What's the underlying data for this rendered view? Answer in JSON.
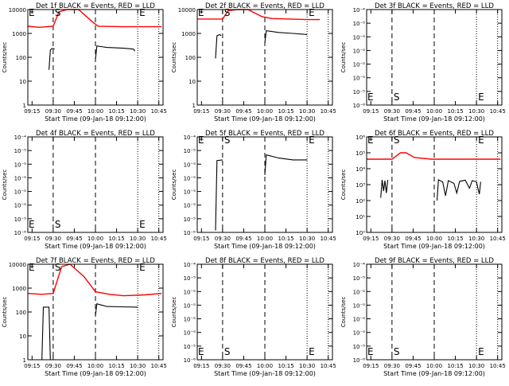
{
  "figure": {
    "xticks": [
      "09:15",
      "09:30",
      "09:45",
      "10:00",
      "10:15",
      "10:30",
      "10:45"
    ],
    "xlabel": "Start Time (09-Jan-18 09:12:00)",
    "ylabel": "Counts/sec",
    "event_color": "#000000",
    "lld_color": "#ff0000"
  },
  "chart_data": [
    {
      "type": "line",
      "title": "Det 1f BLACK = Events, RED = LLD",
      "ylog": true,
      "ylim": [
        1,
        10000
      ],
      "yticks": [
        "1",
        "10",
        "100",
        "1000",
        "10000"
      ],
      "xlim": [
        "09:12",
        "10:48"
      ],
      "markers": [
        {
          "label": "E",
          "time": "09:12"
        },
        {
          "label": "S",
          "time": "09:30"
        },
        {
          "label": "E",
          "time": "10:30"
        }
      ],
      "vlines": [
        {
          "time": "09:30",
          "style": "dashed"
        },
        {
          "time": "10:00",
          "style": "dashed"
        },
        {
          "time": "10:30",
          "style": "dotted"
        },
        {
          "time": "10:45",
          "style": "dotted"
        }
      ],
      "series": [
        {
          "name": "Events",
          "segments": [
            [
              [
                "09:27",
                30
              ],
              [
                "09:28",
                200
              ],
              [
                "09:29",
                230
              ],
              [
                "09:30",
                230
              ],
              [
                "09:31",
                220
              ]
            ],
            [
              [
                "10:00",
                80
              ],
              [
                "10:01",
                300
              ],
              [
                "10:08",
                260
              ],
              [
                "10:20",
                240
              ],
              [
                "10:27",
                220
              ],
              [
                "10:28",
                180
              ]
            ]
          ]
        },
        {
          "name": "LLD",
          "segments": [
            [
              [
                "09:12",
                2000
              ],
              [
                "09:20",
                1800
              ],
              [
                "09:30",
                2000
              ],
              [
                "09:34",
                8000
              ],
              [
                "09:40",
                12000
              ],
              [
                "09:48",
                10000
              ],
              [
                "09:58",
                3000
              ],
              [
                "10:02",
                2000
              ],
              [
                "10:20",
                1900
              ],
              [
                "10:47",
                1900
              ]
            ]
          ]
        }
      ]
    },
    {
      "type": "line",
      "title": "Det 2f BLACK = Events, RED = LLD",
      "ylog": true,
      "ylim": [
        1,
        10000
      ],
      "yticks": [
        "1",
        "10",
        "100",
        "1000",
        "10000"
      ],
      "xlim": [
        "09:12",
        "10:48"
      ],
      "markers": [
        {
          "label": "E",
          "time": "09:12"
        },
        {
          "label": "S",
          "time": "09:30"
        },
        {
          "label": "E",
          "time": "10:30"
        }
      ],
      "vlines": [
        {
          "time": "09:30",
          "style": "dashed"
        },
        {
          "time": "10:00",
          "style": "dashed"
        },
        {
          "time": "10:30",
          "style": "dotted"
        },
        {
          "time": "10:45",
          "style": "dotted"
        }
      ],
      "series": [
        {
          "name": "Events",
          "segments": [
            [
              [
                "09:25",
                90
              ],
              [
                "09:26",
                800
              ],
              [
                "09:28",
                900
              ],
              [
                "09:29",
                800
              ]
            ],
            [
              [
                "10:00",
                400
              ],
              [
                "10:01",
                1300
              ],
              [
                "10:10",
                1100
              ],
              [
                "10:20",
                1000
              ],
              [
                "10:30",
                900
              ]
            ]
          ]
        },
        {
          "name": "LLD",
          "segments": [
            [
              [
                "09:12",
                4000
              ],
              [
                "09:20",
                4000
              ],
              [
                "09:30",
                4000
              ],
              [
                "09:34",
                9000
              ],
              [
                "09:40",
                12000
              ],
              [
                "09:48",
                10000
              ],
              [
                "09:58",
                5000
              ],
              [
                "10:05",
                4200
              ],
              [
                "10:30",
                3800
              ],
              [
                "10:39",
                3800
              ]
            ]
          ]
        }
      ]
    },
    {
      "type": "line",
      "title": "Det 3f BLACK = Events, RED = LLD",
      "ylog": true,
      "ylim": [
        1e-06,
        0.0001
      ],
      "yticks": [
        "10⁻⁶",
        "10⁻⁵",
        "10⁻⁵",
        "10⁻⁵",
        "10⁻⁵",
        "10⁻⁵",
        "10⁻⁵",
        "10⁻⁴"
      ],
      "xlim": [
        "09:12",
        "10:48"
      ],
      "markers": [
        {
          "label": "E",
          "time": "09:12"
        },
        {
          "label": "S",
          "time": "09:30"
        },
        {
          "label": "E",
          "time": "10:30"
        }
      ],
      "vlines": [
        {
          "time": "09:30",
          "style": "dashed"
        },
        {
          "time": "10:00",
          "style": "dashed"
        },
        {
          "time": "10:30",
          "style": "dotted"
        },
        {
          "time": "10:45",
          "style": "dotted"
        }
      ],
      "series": []
    },
    {
      "type": "line",
      "title": "Det 4f BLACK = Events, RED = LLD",
      "ylog": true,
      "ylim": [
        1e-06,
        0.0001
      ],
      "yticks": [
        "10⁻⁶",
        "10⁻⁵",
        "10⁻⁵",
        "10⁻⁵",
        "10⁻⁵",
        "10⁻⁵",
        "10⁻⁵",
        "10⁻⁴"
      ],
      "xlim": [
        "09:12",
        "10:48"
      ],
      "markers": [
        {
          "label": "E",
          "time": "09:12"
        },
        {
          "label": "S",
          "time": "09:30"
        },
        {
          "label": "E",
          "time": "10:30"
        }
      ],
      "vlines": [
        {
          "time": "09:30",
          "style": "dashed"
        },
        {
          "time": "10:00",
          "style": "dashed"
        },
        {
          "time": "10:30",
          "style": "dotted"
        },
        {
          "time": "10:45",
          "style": "dotted"
        }
      ],
      "series": []
    },
    {
      "type": "line",
      "title": "Det 5f BLACK = Events, RED = LLD",
      "ylog": true,
      "ylim": [
        1e-06,
        0.0001
      ],
      "yticks": [
        "10⁻⁶",
        "10⁻⁵",
        "10⁻⁵",
        "10⁻⁵",
        "10⁻⁵",
        "10⁻⁵",
        "10⁻⁵",
        "10⁻⁴"
      ],
      "xlim": [
        "09:12",
        "10:48"
      ],
      "markers": [
        {
          "label": "E",
          "time": "09:12"
        },
        {
          "label": "S",
          "time": "09:30"
        },
        {
          "label": "E",
          "time": "10:30"
        }
      ],
      "vlines": [
        {
          "time": "09:30",
          "style": "dashed"
        },
        {
          "time": "10:00",
          "style": "dashed"
        },
        {
          "time": "10:30",
          "style": "dotted"
        },
        {
          "time": "10:45",
          "style": "dotted"
        }
      ],
      "series": [
        {
          "name": "Events",
          "segments": [
            [
              [
                "09:25",
                1.1e-06
              ],
              [
                "09:26",
                3.2e-05
              ],
              [
                "09:30",
                3.3e-05
              ]
            ],
            [
              [
                "10:00",
                1.6e-05
              ],
              [
                "10:01",
                4.2e-05
              ],
              [
                "10:10",
                3.6e-05
              ],
              [
                "10:20",
                3.3e-05
              ],
              [
                "10:30",
                3.3e-05
              ]
            ]
          ]
        }
      ]
    },
    {
      "type": "line",
      "title": "Det 6f BLACK = Events, RED = LLD",
      "ylog": true,
      "ylim": [
        1,
        1000000.0
      ],
      "yticks": [
        "10⁰",
        "10¹",
        "10²",
        "10³",
        "10⁴",
        "10⁵",
        "10⁶"
      ],
      "xlim": [
        "09:12",
        "10:48"
      ],
      "markers": [
        {
          "label": "E",
          "time": "09:12"
        },
        {
          "label": "S",
          "time": "09:30"
        },
        {
          "label": "E",
          "time": "10:30"
        }
      ],
      "vlines": [
        {
          "time": "09:30",
          "style": "dashed"
        },
        {
          "time": "10:00",
          "style": "dashed"
        },
        {
          "time": "10:30",
          "style": "dotted"
        },
        {
          "time": "10:45",
          "style": "dotted"
        }
      ],
      "series": [
        {
          "name": "Events",
          "segments": [
            [
              [
                "09:22",
                150
              ],
              [
                "09:23",
                2000
              ],
              [
                "09:24",
                400
              ],
              [
                "09:25",
                1800
              ],
              [
                "09:26",
                300
              ],
              [
                "09:27",
                2000
              ]
            ],
            [
              [
                "10:02",
                100
              ],
              [
                "10:03",
                2000
              ],
              [
                "10:06",
                1500
              ],
              [
                "10:08",
                200
              ],
              [
                "10:10",
                1800
              ],
              [
                "10:14",
                1200
              ],
              [
                "10:16",
                300
              ],
              [
                "10:18",
                1600
              ],
              [
                "10:22",
                1900
              ],
              [
                "10:25",
                600
              ],
              [
                "10:27",
                1800
              ],
              [
                "10:30",
                1500
              ],
              [
                "10:32",
                250
              ],
              [
                "10:33",
                1500
              ]
            ]
          ]
        },
        {
          "name": "LLD",
          "segments": [
            [
              [
                "09:12",
                40000
              ],
              [
                "09:22",
                40000
              ],
              [
                "09:30",
                40000
              ],
              [
                "09:36",
                100000
              ],
              [
                "09:40",
                100000
              ],
              [
                "09:46",
                50000
              ],
              [
                "09:58",
                40000
              ],
              [
                "10:20",
                40000
              ],
              [
                "10:47",
                40000
              ]
            ]
          ]
        }
      ]
    },
    {
      "type": "line",
      "title": "Det 7f BLACK = Events, RED = LLD",
      "ylog": true,
      "ylim": [
        1,
        10000
      ],
      "yticks": [
        "1",
        "10",
        "100",
        "1000",
        "10000"
      ],
      "xlim": [
        "09:12",
        "10:48"
      ],
      "markers": [
        {
          "label": "E",
          "time": "09:12"
        },
        {
          "label": "S",
          "time": "09:30"
        },
        {
          "label": "E",
          "time": "10:30"
        }
      ],
      "vlines": [
        {
          "time": "09:30",
          "style": "dashed"
        },
        {
          "time": "10:00",
          "style": "dashed"
        },
        {
          "time": "10:30",
          "style": "dotted"
        },
        {
          "time": "10:45",
          "style": "dotted"
        }
      ],
      "series": [
        {
          "name": "Events",
          "segments": [
            [
              [
                "09:22",
                1
              ],
              [
                "09:23",
                160
              ],
              [
                "09:27",
                160
              ],
              [
                "09:28",
                1
              ]
            ],
            [
              [
                "10:00",
                70
              ],
              [
                "10:01",
                220
              ],
              [
                "10:08",
                170
              ],
              [
                "10:18",
                165
              ],
              [
                "10:30",
                160
              ]
            ]
          ]
        },
        {
          "name": "LLD",
          "segments": [
            [
              [
                "09:12",
                600
              ],
              [
                "09:22",
                550
              ],
              [
                "09:30",
                600
              ],
              [
                "09:36",
                8000
              ],
              [
                "09:42",
                12000
              ],
              [
                "09:52",
                3000
              ],
              [
                "10:00",
                700
              ],
              [
                "10:10",
                550
              ],
              [
                "10:20",
                480
              ],
              [
                "10:35",
                520
              ],
              [
                "10:47",
                600
              ]
            ]
          ]
        }
      ]
    },
    {
      "type": "line",
      "title": "Det 8f BLACK = Events, RED = LLD",
      "ylog": true,
      "ylim": [
        1e-06,
        0.0001
      ],
      "yticks": [
        "10⁻⁶",
        "10⁻⁵",
        "10⁻⁵",
        "10⁻⁵",
        "10⁻⁵",
        "10⁻⁵",
        "10⁻⁵",
        "10⁻⁴"
      ],
      "xlim": [
        "09:12",
        "10:48"
      ],
      "markers": [
        {
          "label": "E",
          "time": "09:12"
        },
        {
          "label": "S",
          "time": "09:30"
        },
        {
          "label": "E",
          "time": "10:30"
        }
      ],
      "vlines": [
        {
          "time": "09:30",
          "style": "dashed"
        },
        {
          "time": "10:00",
          "style": "dashed"
        },
        {
          "time": "10:30",
          "style": "dotted"
        },
        {
          "time": "10:45",
          "style": "dotted"
        }
      ],
      "series": []
    },
    {
      "type": "line",
      "title": "Det 9f BLACK = Events, RED = LLD",
      "ylog": true,
      "ylim": [
        1e-06,
        0.0001
      ],
      "yticks": [
        "10⁻⁶",
        "10⁻⁵",
        "10⁻⁵",
        "10⁻⁵",
        "10⁻⁵",
        "10⁻⁵",
        "10⁻⁵",
        "10⁻⁴"
      ],
      "xlim": [
        "09:12",
        "10:48"
      ],
      "markers": [
        {
          "label": "E",
          "time": "09:12"
        },
        {
          "label": "S",
          "time": "09:30"
        },
        {
          "label": "E",
          "time": "10:30"
        }
      ],
      "vlines": [
        {
          "time": "09:30",
          "style": "dashed"
        },
        {
          "time": "10:00",
          "style": "dashed"
        },
        {
          "time": "10:30",
          "style": "dotted"
        },
        {
          "time": "10:45",
          "style": "dotted"
        }
      ],
      "series": []
    }
  ]
}
